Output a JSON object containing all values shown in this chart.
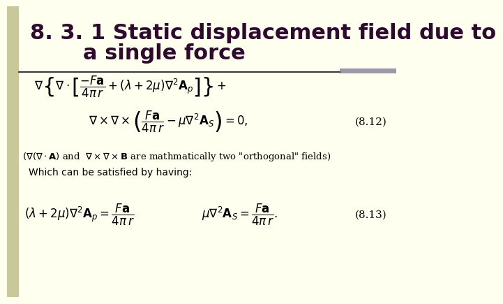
{
  "title_line1": "8. 3. 1 Static displacement field due to",
  "title_line2": "a single force",
  "title_fontsize": 22,
  "title_color": "#2d0a2e",
  "bg_color": "#fffff0",
  "left_bar_color": "#c8c89a",
  "right_bar_color": "#9999aa",
  "eq1_line1": "$\\nabla\\left\\{\\nabla\\cdot\\left[\\dfrac{-F\\mathbf{a}}{4\\pi\\,r}+(\\lambda+2\\mu)\\nabla^2\\mathbf{A}_p\\right]\\right\\}+$",
  "eq1_line2": "$\\nabla\\times\\nabla\\times\\left(\\dfrac{F\\mathbf{a}}{4\\pi\\,r}-\\mu\\nabla^2\\mathbf{A}_S\\right)=0,$",
  "eq_label1": "(8.12)",
  "note_line1": "$(\\nabla(\\nabla\\cdot\\mathbf{A})$ and  $\\nabla\\times\\nabla\\times\\mathbf{B}$ are mathmatically two \"orthogonal\" fields)",
  "note_line2": "Which can be satisfied by having:",
  "eq2_left": "$(\\lambda+2\\mu)\\nabla^2\\mathbf{A}_p = \\dfrac{F\\mathbf{a}}{4\\pi\\,r}$",
  "eq2_right": "$\\mu\\nabla^2\\mathbf{A}_S = \\dfrac{F\\mathbf{a}}{4\\pi\\,r}.$",
  "eq_label2": "(8.13)"
}
